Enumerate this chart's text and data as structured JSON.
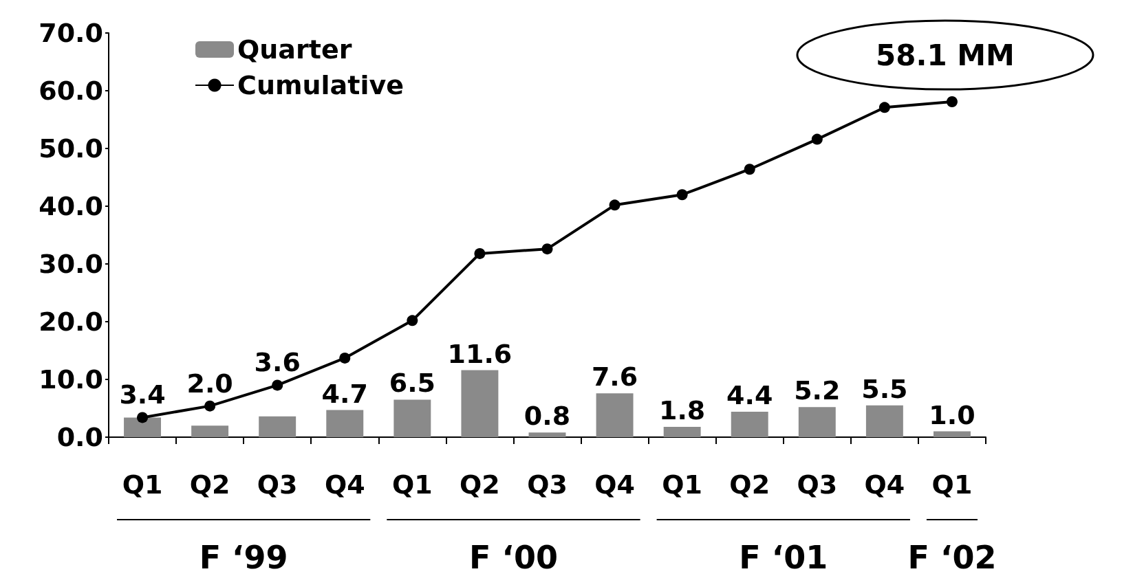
{
  "chart_data": {
    "type": "bar",
    "categories": [
      "Q1",
      "Q2",
      "Q3",
      "Q4",
      "Q1",
      "Q2",
      "Q3",
      "Q4",
      "Q1",
      "Q2",
      "Q3",
      "Q4",
      "Q1"
    ],
    "series": [
      {
        "name": "Quarter",
        "color": "#8a8a8a",
        "values": [
          3.4,
          2.0,
          3.6,
          4.7,
          6.5,
          11.6,
          0.8,
          7.6,
          1.8,
          4.4,
          5.2,
          5.5,
          1.0
        ],
        "value_labels": [
          "3.4",
          "2.0",
          "3.6",
          "4.7",
          "6.5",
          "11.6",
          "0.8",
          "7.6",
          "1.8",
          "4.4",
          "5.2",
          "5.5",
          "1.0"
        ]
      },
      {
        "name": "Cumulative",
        "type": "line",
        "color": "#000000",
        "marker": "circle",
        "values": [
          3.4,
          5.4,
          9.0,
          13.7,
          20.2,
          31.8,
          32.6,
          40.2,
          42.0,
          46.4,
          51.6,
          57.1,
          58.1
        ]
      }
    ],
    "ylim": [
      0,
      70
    ],
    "yticks": [
      {
        "value": 0,
        "label": "0.0"
      },
      {
        "value": 10,
        "label": "10.0"
      },
      {
        "value": 20,
        "label": "20.0"
      },
      {
        "value": 30,
        "label": "30.0"
      },
      {
        "value": 40,
        "label": "40.0"
      },
      {
        "value": 50,
        "label": "50.0"
      },
      {
        "value": 60,
        "label": "60.0"
      },
      {
        "value": 70,
        "label": "70.0"
      }
    ],
    "grid": false,
    "legend": "top left",
    "annotations": [
      "58.1 MM",
      "F ‘99",
      "F ‘00",
      "F ‘01",
      "F ‘02"
    ]
  }
}
